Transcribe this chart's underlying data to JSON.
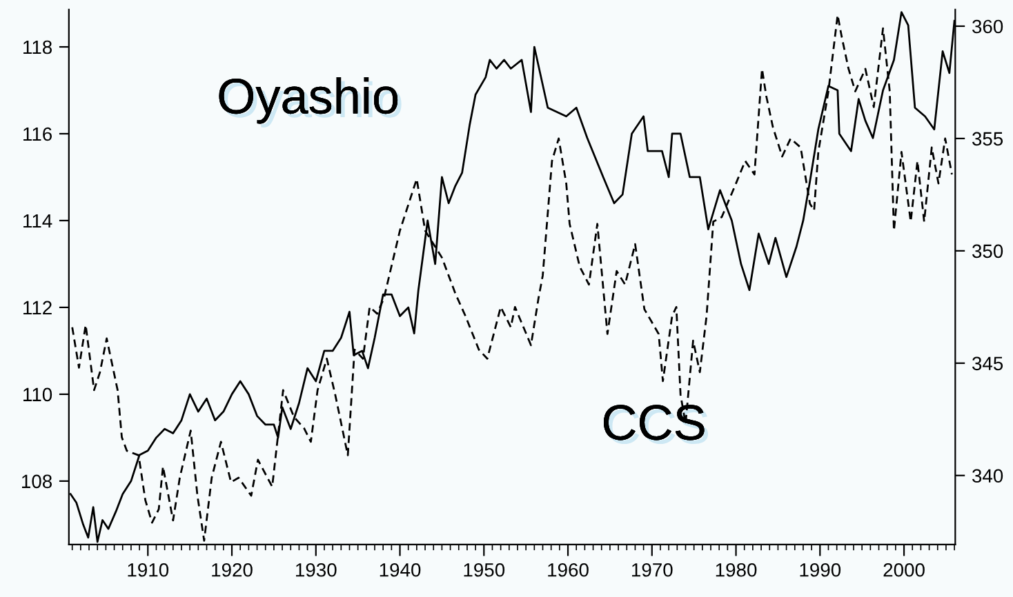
{
  "chart_data": {
    "type": "line",
    "xlim": [
      1900.6,
      2006.1
    ],
    "ylim": [
      106.54,
      118.86
    ],
    "y2lim": [
      336.93,
      360.74
    ],
    "yticks": [
      108,
      110,
      112,
      114,
      116,
      118
    ],
    "y2ticks": [
      340,
      345,
      350,
      355,
      360
    ],
    "xticks": [
      {
        "value": 1901,
        "label": null
      },
      {
        "value": 1902,
        "label": null
      },
      {
        "value": 1903,
        "label": null
      },
      {
        "value": 1904,
        "label": null
      },
      {
        "value": 1905,
        "label": null
      },
      {
        "value": 1906,
        "label": null
      },
      {
        "value": 1907,
        "label": null
      },
      {
        "value": 1908,
        "label": null
      },
      {
        "value": 1909,
        "label": null
      },
      1910,
      {
        "value": 1911,
        "label": null
      },
      {
        "value": 1912,
        "label": null
      },
      {
        "value": 1913,
        "label": null
      },
      {
        "value": 1914,
        "label": null
      },
      {
        "value": 1915,
        "label": null
      },
      {
        "value": 1916,
        "label": null
      },
      {
        "value": 1917,
        "label": null
      },
      {
        "value": 1918,
        "label": null
      },
      {
        "value": 1919,
        "label": null
      },
      1920,
      {
        "value": 1921,
        "label": null
      },
      {
        "value": 1922,
        "label": null
      },
      {
        "value": 1923,
        "label": null
      },
      {
        "value": 1924,
        "label": null
      },
      {
        "value": 1925,
        "label": null
      },
      {
        "value": 1926,
        "label": null
      },
      {
        "value": 1927,
        "label": null
      },
      {
        "value": 1928,
        "label": null
      },
      {
        "value": 1929,
        "label": null
      },
      1930,
      {
        "value": 1931,
        "label": null
      },
      {
        "value": 1932,
        "label": null
      },
      {
        "value": 1933,
        "label": null
      },
      {
        "value": 1934,
        "label": null
      },
      {
        "value": 1935,
        "label": null
      },
      {
        "value": 1936,
        "label": null
      },
      {
        "value": 1937,
        "label": null
      },
      {
        "value": 1938,
        "label": null
      },
      {
        "value": 1939,
        "label": null
      },
      1940,
      {
        "value": 1941,
        "label": null
      },
      {
        "value": 1942,
        "label": null
      },
      {
        "value": 1943,
        "label": null
      },
      {
        "value": 1944,
        "label": null
      },
      {
        "value": 1945,
        "label": null
      },
      {
        "value": 1946,
        "label": null
      },
      {
        "value": 1947,
        "label": null
      },
      {
        "value": 1948,
        "label": null
      },
      {
        "value": 1949,
        "label": null
      },
      1950,
      {
        "value": 1951,
        "label": null
      },
      {
        "value": 1952,
        "label": null
      },
      {
        "value": 1953,
        "label": null
      },
      {
        "value": 1954,
        "label": null
      },
      {
        "value": 1955,
        "label": null
      },
      {
        "value": 1956,
        "label": null
      },
      {
        "value": 1957,
        "label": null
      },
      {
        "value": 1958,
        "label": null
      },
      {
        "value": 1959,
        "label": null
      },
      1960,
      {
        "value": 1961,
        "label": null
      },
      {
        "value": 1962,
        "label": null
      },
      {
        "value": 1963,
        "label": null
      },
      {
        "value": 1964,
        "label": null
      },
      {
        "value": 1965,
        "label": null
      },
      {
        "value": 1966,
        "label": null
      },
      {
        "value": 1967,
        "label": null
      },
      {
        "value": 1968,
        "label": null
      },
      {
        "value": 1969,
        "label": null
      },
      1970,
      {
        "value": 1971,
        "label": null
      },
      {
        "value": 1972,
        "label": null
      },
      {
        "value": 1973,
        "label": null
      },
      {
        "value": 1974,
        "label": null
      },
      {
        "value": 1975,
        "label": null
      },
      {
        "value": 1976,
        "label": null
      },
      {
        "value": 1977,
        "label": null
      },
      {
        "value": 1978,
        "label": null
      },
      {
        "value": 1979,
        "label": null
      },
      1980,
      {
        "value": 1981,
        "label": null
      },
      {
        "value": 1982,
        "label": null
      },
      {
        "value": 1983,
        "label": null
      },
      {
        "value": 1984,
        "label": null
      },
      {
        "value": 1985,
        "label": null
      },
      {
        "value": 1986,
        "label": null
      },
      {
        "value": 1987,
        "label": null
      },
      {
        "value": 1988,
        "label": null
      },
      {
        "value": 1989,
        "label": null
      },
      1990,
      {
        "value": 1991,
        "label": null
      },
      {
        "value": 1992,
        "label": null
      },
      {
        "value": 1993,
        "label": null
      },
      {
        "value": 1994,
        "label": null
      },
      {
        "value": 1995,
        "label": null
      },
      {
        "value": 1996,
        "label": null
      },
      {
        "value": 1997,
        "label": null
      },
      {
        "value": 1998,
        "label": null
      },
      {
        "value": 1999,
        "label": null
      },
      2000,
      {
        "value": 2001,
        "label": null
      },
      {
        "value": 2002,
        "label": null
      },
      {
        "value": 2003,
        "label": null
      },
      {
        "value": 2004,
        "label": null
      },
      {
        "value": 2005,
        "label": null
      },
      {
        "value": 2006,
        "label": null
      }
    ],
    "grid": false,
    "legend": false,
    "marker": "none",
    "series": [
      {
        "name": "Oyashio",
        "color": "#000000",
        "line_style": "solid",
        "x": [
          1900.8,
          1901.5,
          1902.3,
          1902.9,
          1903.5,
          1904.0,
          1904.6,
          1905.3,
          1906.2,
          1907.0,
          1908.0,
          1909.0,
          1910.0,
          1911.0,
          1912.0,
          1913.0,
          1914.0,
          1915.0,
          1916.0,
          1917.0,
          1918.0,
          1919.0,
          1920.0,
          1921.0,
          1922.0,
          1923.0,
          1924.0,
          1925.0,
          1925.5,
          1926.0,
          1927.0,
          1928.0,
          1929.0,
          1930.0,
          1931.0,
          1932.0,
          1933.0,
          1934.0,
          1934.5,
          1935.5,
          1936.2,
          1937.0,
          1938.0,
          1939.0,
          1940.0,
          1941.0,
          1941.7,
          1942.2,
          1943.3,
          1944.2,
          1945.0,
          1945.8,
          1946.6,
          1947.4,
          1948.3,
          1949.0,
          1950.2,
          1950.7,
          1951.5,
          1952.4,
          1953.2,
          1954.5,
          1955.6,
          1956.0,
          1957.6,
          1959.8,
          1961.0,
          1962.3,
          1964.2,
          1965.5,
          1966.5,
          1967.6,
          1969.0,
          1969.5,
          1971.2,
          1972.0,
          1972.4,
          1973.4,
          1974.5,
          1975.7,
          1976.7,
          1978.1,
          1979.5,
          1980.6,
          1981.6,
          1982.7,
          1983.9,
          1984.7,
          1986.0,
          1987.2,
          1988.0,
          1988.8,
          1989.8,
          1991.0,
          1992.1,
          1992.3,
          1993.7,
          1994.6,
          1995.4,
          1996.3,
          1997.5,
          1998.8,
          1999.7,
          2000.5,
          2001.3,
          2002.5,
          2003.6,
          2004.6,
          2005.4,
          2006.0
        ],
        "values": [
          107.7,
          107.5,
          107.0,
          106.7,
          107.4,
          106.6,
          107.1,
          106.9,
          107.3,
          107.7,
          108.0,
          108.6,
          108.7,
          109.0,
          109.2,
          109.1,
          109.4,
          110.0,
          109.6,
          109.9,
          109.4,
          109.6,
          110.0,
          110.3,
          110.0,
          109.5,
          109.3,
          109.3,
          109.0,
          109.7,
          109.2,
          109.8,
          110.6,
          110.3,
          111.0,
          111.0,
          111.3,
          111.9,
          110.9,
          111.0,
          110.6,
          111.3,
          112.3,
          112.3,
          111.8,
          112.0,
          111.4,
          112.4,
          114.0,
          113.0,
          115.0,
          114.4,
          114.8,
          115.1,
          116.2,
          116.9,
          117.3,
          117.7,
          117.5,
          117.7,
          117.5,
          117.7,
          116.5,
          118.0,
          116.6,
          116.4,
          116.6,
          115.9,
          115.0,
          114.4,
          114.6,
          116.0,
          116.4,
          115.6,
          115.6,
          115.0,
          116.0,
          116.0,
          115.0,
          115.0,
          113.8,
          114.7,
          114.0,
          113.0,
          112.4,
          113.7,
          113.0,
          113.6,
          112.7,
          113.4,
          114.0,
          114.9,
          116.1,
          117.1,
          117.0,
          116.0,
          115.6,
          116.8,
          116.3,
          115.9,
          117.0,
          117.7,
          118.8,
          118.5,
          116.6,
          116.4,
          116.1,
          117.9,
          117.4,
          118.6
        ]
      },
      {
        "name": "CCS",
        "color": "#000000",
        "line_style": "dashed",
        "axis": "y2",
        "x": [
          1901.0,
          1901.8,
          1902.6,
          1903.6,
          1904.3,
          1905.1,
          1906.4,
          1906.9,
          1907.5,
          1908.9,
          1909.7,
          1910.5,
          1911.3,
          1911.8,
          1913.0,
          1913.8,
          1915.1,
          1915.9,
          1916.7,
          1917.6,
          1918.7,
          1919.9,
          1920.8,
          1922.3,
          1923.1,
          1924.8,
          1926.1,
          1927.4,
          1928.6,
          1929.4,
          1930.2,
          1931.3,
          1932.3,
          1933.8,
          1934.6,
          1935.6,
          1936.4,
          1937.3,
          1938.1,
          1940.0,
          1942.0,
          1943.0,
          1945.0,
          1946.6,
          1947.8,
          1949.4,
          1950.4,
          1952.0,
          1953.2,
          1953.7,
          1955.6,
          1956.5,
          1957.0,
          1958.1,
          1958.9,
          1959.8,
          1960.2,
          1961.4,
          1962.5,
          1963.5,
          1964.7,
          1965.8,
          1966.8,
          1968.0,
          1969.1,
          1970.8,
          1971.3,
          1972.4,
          1972.9,
          1973.4,
          1974.0,
          1974.9,
          1975.7,
          1976.5,
          1977.3,
          1978.3,
          1980.0,
          1981.1,
          1982.2,
          1983.1,
          1983.6,
          1984.4,
          1985.5,
          1986.5,
          1987.7,
          1988.8,
          1989.3,
          1989.8,
          1991.0,
          1992.1,
          1992.6,
          1993.4,
          1994.2,
          1995.4,
          1996.4,
          1997.5,
          1998.3,
          1998.8,
          1999.7,
          2000.8,
          2001.6,
          2002.4,
          2003.3,
          2004.1,
          2004.9,
          2005.7
        ],
        "values": [
          346.6,
          344.8,
          346.7,
          343.8,
          344.6,
          346.1,
          343.8,
          341.7,
          341.1,
          340.9,
          338.9,
          337.9,
          338.5,
          340.4,
          338.0,
          339.9,
          342.0,
          339.1,
          337.1,
          339.9,
          341.5,
          339.7,
          339.9,
          339.1,
          340.7,
          339.5,
          343.8,
          342.6,
          342.1,
          341.5,
          343.8,
          345.2,
          343.6,
          340.9,
          345.6,
          345.2,
          347.5,
          347.2,
          347.9,
          350.9,
          353.2,
          350.9,
          349.7,
          348.1,
          347.1,
          345.6,
          345.2,
          347.5,
          346.6,
          347.5,
          345.8,
          347.9,
          348.9,
          354.0,
          355.0,
          353.0,
          351.2,
          349.3,
          348.5,
          351.2,
          346.3,
          349.1,
          348.5,
          350.3,
          347.4,
          346.3,
          344.2,
          347.1,
          347.5,
          343.6,
          342.3,
          346.0,
          344.6,
          347.1,
          351.3,
          351.5,
          353.0,
          354.0,
          353.4,
          358.1,
          356.9,
          355.5,
          354.2,
          355.0,
          354.6,
          352.1,
          351.8,
          354.4,
          357.1,
          360.5,
          359.5,
          358.1,
          357.1,
          358.1,
          356.4,
          359.9,
          357.1,
          350.9,
          354.4,
          351.3,
          354.0,
          351.3,
          354.6,
          353.0,
          355.0,
          353.4
        ]
      }
    ]
  }
}
